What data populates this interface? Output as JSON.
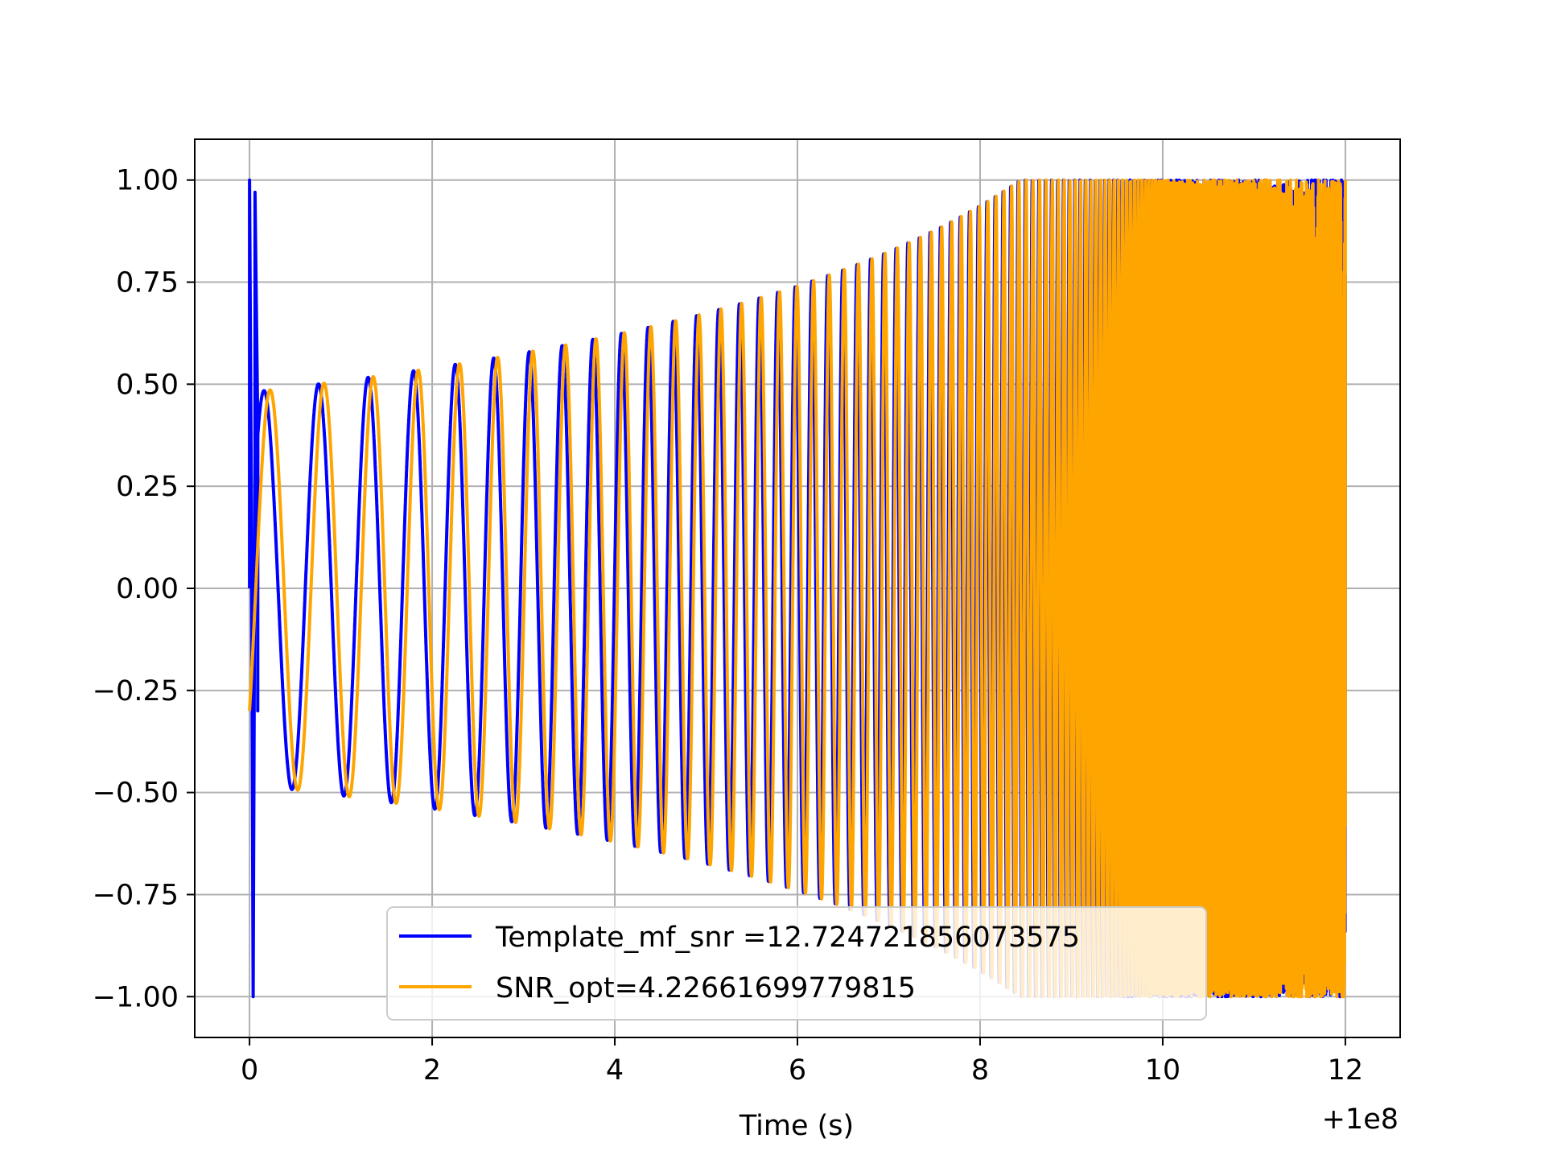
{
  "chart_data": {
    "type": "line",
    "title": "",
    "xlabel": "Time (s)",
    "ylabel": "",
    "x_offset_label": "+1e8",
    "xlim": [
      -0.6,
      12.6
    ],
    "ylim": [
      -1.1,
      1.1
    ],
    "x_tick_labels": [
      "0",
      "2",
      "4",
      "6",
      "8",
      "10",
      "12"
    ],
    "x_tick_values": [
      0,
      2,
      4,
      6,
      8,
      10,
      12
    ],
    "y_tick_labels": [
      "1.00",
      "0.75",
      "0.50",
      "0.25",
      "0.00",
      "−0.25",
      "−0.50",
      "−0.75",
      "−1.00"
    ],
    "y_tick_values": [
      1.0,
      0.75,
      0.5,
      0.25,
      0.0,
      -0.25,
      -0.5,
      -0.75,
      -1.0
    ],
    "grid": true,
    "legend_position": "lower center",
    "series": [
      {
        "name": "Template_mf_snr =12.724721856073575",
        "color": "#0000ff",
        "description": "chirp oscillation, amplitude grows from ~0.48 to 1.0, with an initial spike reaching 1.0 and -1.0 near t=0",
        "x_start": 0,
        "x_end": 12,
        "amplitude_start": 0.48,
        "amplitude_end": 1.0,
        "initial_spike": [
          1.0,
          -1.0
        ]
      },
      {
        "name": "SNR_opt=4.22661699779815",
        "color": "#ffa500",
        "description": "chirp oscillation, amplitude grows from ~0.48 to 1.0, starting near -0.3",
        "x_start": 0,
        "x_end": 12,
        "amplitude_start": 0.48,
        "amplitude_end": 1.0,
        "start_value": -0.3
      }
    ]
  }
}
